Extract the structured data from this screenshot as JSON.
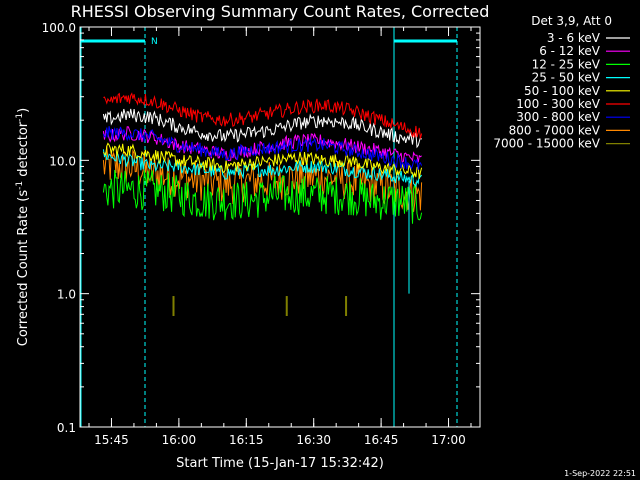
{
  "chart_data": {
    "type": "line",
    "title": "RHESSI Observing Summary Count Rates, Corrected",
    "xlabel": "Start Time (15-Jan-17 15:32:42)",
    "ylabel_main": "Corrected Count Rate (s",
    "ylabel_sup1": "-1",
    "ylabel_mid": " detector",
    "ylabel_sup2": "-1",
    "ylabel_end": ")",
    "yscale": "log",
    "ylim": [
      0.1,
      100.0
    ],
    "xlim_minutes": [
      15.6333,
      17.1167
    ],
    "x_ticks": [
      {
        "t": 15.75,
        "label": "15:45"
      },
      {
        "t": 16.0,
        "label": "16:00"
      },
      {
        "t": 16.25,
        "label": "16:15"
      },
      {
        "t": 16.5,
        "label": "16:30"
      },
      {
        "t": 16.75,
        "label": "16:45"
      },
      {
        "t": 17.0,
        "label": "17:00"
      }
    ],
    "y_ticks": [
      {
        "v": 0.1,
        "label": "0.1"
      },
      {
        "v": 1.0,
        "label": "1.0"
      },
      {
        "v": 10.0,
        "label": "10.0"
      },
      {
        "v": 100.0,
        "label": "100.0"
      }
    ],
    "legend_header": "Det 3,9, Att 0",
    "legend_position": "top-right outside",
    "series": [
      {
        "name": "3 - 6 keV",
        "color": "#ffffff",
        "x_range": [
          15.72,
          16.9
        ],
        "values": [
          20,
          22,
          21,
          18,
          16,
          15,
          16,
          17,
          19,
          20,
          19,
          17,
          15,
          14
        ]
      },
      {
        "name": "6 - 12 keV",
        "color": "#ff00ff",
        "x_range": [
          15.72,
          16.9
        ],
        "values": [
          15,
          16,
          15,
          13,
          12,
          11,
          12,
          13,
          14,
          14,
          13,
          12,
          11,
          10
        ]
      },
      {
        "name": "12 - 25 keV",
        "color": "#00ff00",
        "x_range": [
          15.72,
          16.9
        ],
        "values": [
          6,
          6,
          6,
          5.5,
          5,
          5,
          5,
          5.5,
          5.5,
          5.5,
          5.5,
          5,
          5,
          4.5
        ]
      },
      {
        "name": "25 - 50 keV",
        "color": "#00ffff",
        "x_range": [
          15.72,
          16.9
        ],
        "values": [
          11,
          10,
          9,
          9,
          8.5,
          8,
          8.5,
          8.5,
          9,
          9,
          8.5,
          8,
          7.5,
          7
        ]
      },
      {
        "name": "50 - 100 keV",
        "color": "#ffff00",
        "x_range": [
          15.72,
          16.9
        ],
        "values": [
          12,
          12,
          11,
          10,
          9.5,
          9,
          9.5,
          10,
          10.5,
          10,
          10,
          9,
          8.5,
          8
        ]
      },
      {
        "name": "100 - 300 keV",
        "color": "#ff0000",
        "x_range": [
          15.72,
          16.9
        ],
        "values": [
          27,
          30,
          28,
          24,
          21,
          20,
          21,
          23,
          25,
          26,
          24,
          21,
          18,
          16
        ]
      },
      {
        "name": "300 - 800 keV",
        "color": "#0000ff",
        "x_range": [
          15.72,
          16.9
        ],
        "values": [
          16,
          16,
          15,
          13,
          12,
          11,
          12,
          12.5,
          13,
          13,
          12,
          11,
          10,
          9
        ]
      },
      {
        "name": "800 - 7000 keV",
        "color": "#ff8800",
        "x_range": [
          15.72,
          16.9
        ],
        "values": [
          9,
          9,
          8,
          7.5,
          7,
          6.5,
          7,
          7,
          7.5,
          7.5,
          7,
          6.5,
          6,
          5.5
        ]
      },
      {
        "name": "7000 - 15000 keV",
        "color": "#808000",
        "x_range": [
          15.98,
          16.62
        ],
        "values": [
          0.8,
          0.8,
          0.8
        ]
      }
    ],
    "attenuator_marker": "N",
    "timestamp": "1-Sep-2022 22:51"
  }
}
